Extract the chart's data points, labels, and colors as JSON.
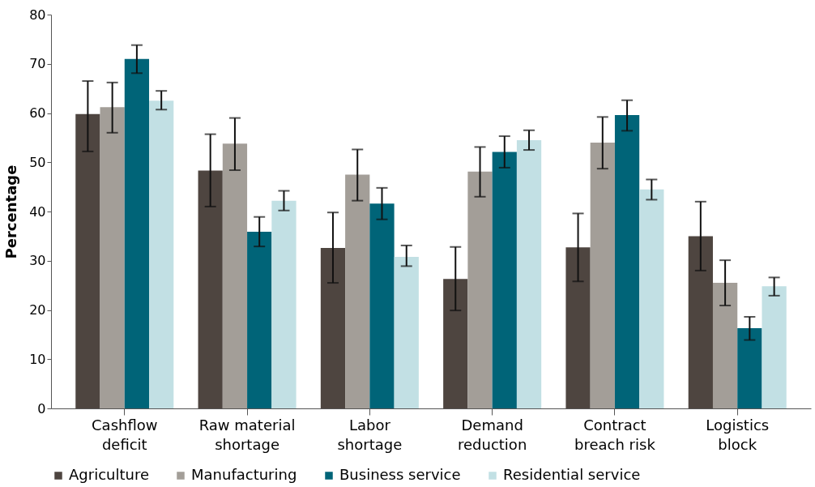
{
  "chart_data": {
    "type": "bar",
    "ylabel": "Percentage",
    "categories": [
      "Cashflow deficit",
      "Raw material shortage",
      "Labor shortage",
      "Demand reduction",
      "Contract breach risk",
      "Logistics block"
    ],
    "series": [
      {
        "name": "Agriculture",
        "color": "#4e4540",
        "values": [
          59.8,
          48.3,
          32.6,
          26.3,
          32.7,
          35.0
        ],
        "errors": [
          [
            52.2,
            66.5
          ],
          [
            41.0,
            55.7
          ],
          [
            25.5,
            39.8
          ],
          [
            19.9,
            32.8
          ],
          [
            25.8,
            39.6
          ],
          [
            28.0,
            42.0
          ]
        ]
      },
      {
        "name": "Manufacturing",
        "color": "#a39e98",
        "values": [
          61.2,
          53.8,
          47.5,
          48.1,
          54.0,
          25.5
        ],
        "errors": [
          [
            56.0,
            66.2
          ],
          [
            48.4,
            59.0
          ],
          [
            42.2,
            52.6
          ],
          [
            43.0,
            53.1
          ],
          [
            48.7,
            59.2
          ],
          [
            20.9,
            30.1
          ]
        ]
      },
      {
        "name": "Business service",
        "color": "#006478",
        "values": [
          71.0,
          35.9,
          41.6,
          52.1,
          59.6,
          16.3
        ],
        "errors": [
          [
            68.1,
            73.8
          ],
          [
            32.9,
            38.9
          ],
          [
            38.4,
            44.8
          ],
          [
            48.9,
            55.3
          ],
          [
            56.4,
            62.6
          ],
          [
            13.9,
            18.6
          ]
        ]
      },
      {
        "name": "Residential service",
        "color": "#c2e0e4",
        "values": [
          62.5,
          42.2,
          30.8,
          54.5,
          44.5,
          24.8
        ],
        "errors": [
          [
            60.7,
            64.5
          ],
          [
            40.2,
            44.2
          ],
          [
            28.9,
            33.1
          ],
          [
            52.5,
            56.5
          ],
          [
            42.4,
            46.5
          ],
          [
            22.9,
            26.6
          ]
        ]
      }
    ],
    "ylim": [
      0,
      80
    ],
    "yticks": [
      0,
      10,
      20,
      30,
      40,
      50,
      60,
      70,
      80
    ],
    "grid": false,
    "legend": "bottom"
  }
}
